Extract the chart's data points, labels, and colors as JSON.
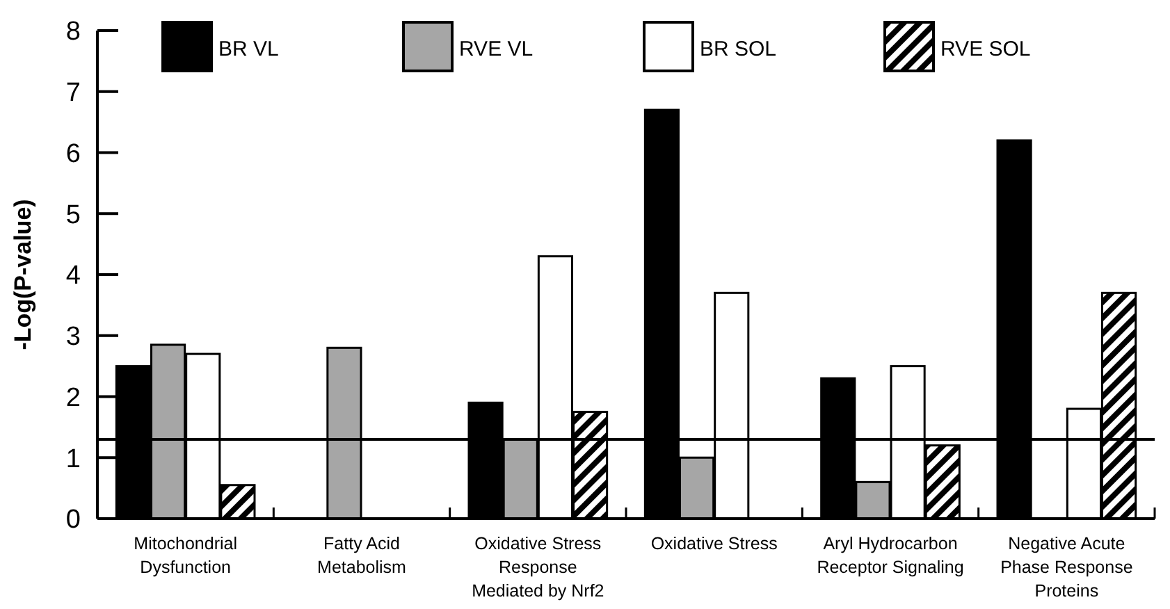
{
  "chart_data": {
    "type": "bar",
    "ylabel": "-Log(P-value)",
    "categories": [
      "Mitochondrial Dysfunction",
      "Fatty Acid Metabolism",
      "Oxidative Stress Response Mediated by Nrf2",
      "Oxidative Stress",
      "Aryl Hydrocarbon Receptor Signaling",
      "Negative Acute Phase Response Proteins"
    ],
    "series": [
      {
        "name": "BR VL",
        "color": "#000000",
        "values": [
          2.5,
          null,
          1.9,
          6.7,
          2.3,
          6.2
        ]
      },
      {
        "name": "RVE VL",
        "color": "#a6a6a6",
        "values": [
          2.85,
          2.8,
          1.3,
          1.0,
          0.6,
          null
        ]
      },
      {
        "name": "BR SOL",
        "color": "#ffffff",
        "values": [
          2.7,
          null,
          4.3,
          3.7,
          2.5,
          1.8
        ]
      },
      {
        "name": "RVE SOL",
        "color": "#000000",
        "values": [
          0.55,
          null,
          1.75,
          null,
          1.2,
          3.7
        ]
      }
    ],
    "ylim": [
      0,
      8
    ],
    "yticks": [
      0,
      1,
      2,
      3,
      4,
      5,
      6,
      7,
      8
    ],
    "ref_lines": [
      {
        "axis": "y",
        "value": 1.3,
        "color": "#000000",
        "line_style": "solid"
      }
    ],
    "legend": "top",
    "grid": false
  }
}
